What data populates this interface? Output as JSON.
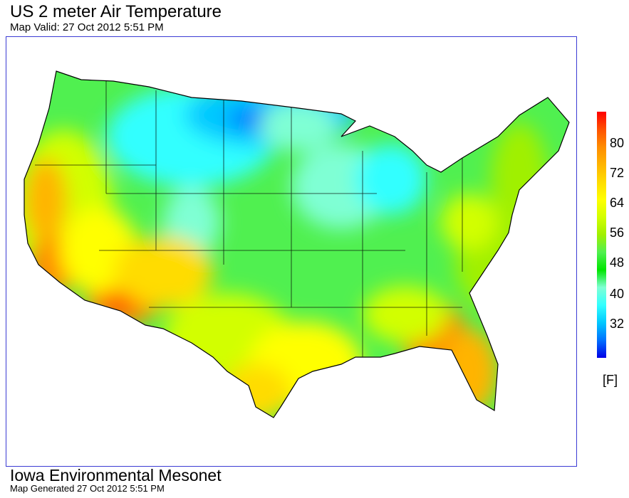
{
  "header": {
    "title": "US 2 meter Air Temperature",
    "subtitle": "Map Valid: 27 Oct 2012 5:51 PM"
  },
  "footer": {
    "title": "Iowa Environmental Mesonet",
    "subtitle": "Map Generated 27 Oct 2012 5:51 PM"
  },
  "legend": {
    "unit": "[F]",
    "ticks": [
      "80",
      "72",
      "64",
      "56",
      "48",
      "40",
      "32"
    ],
    "colors": [
      "#0000e6",
      "#0070ff",
      "#00c8ff",
      "#32ffff",
      "#7fffd4",
      "#00e600",
      "#50f050",
      "#a0f000",
      "#d2ff00",
      "#ffff00",
      "#ffdc00",
      "#ffb400",
      "#ff8c00",
      "#ff5000",
      "#ff0000"
    ]
  }
}
